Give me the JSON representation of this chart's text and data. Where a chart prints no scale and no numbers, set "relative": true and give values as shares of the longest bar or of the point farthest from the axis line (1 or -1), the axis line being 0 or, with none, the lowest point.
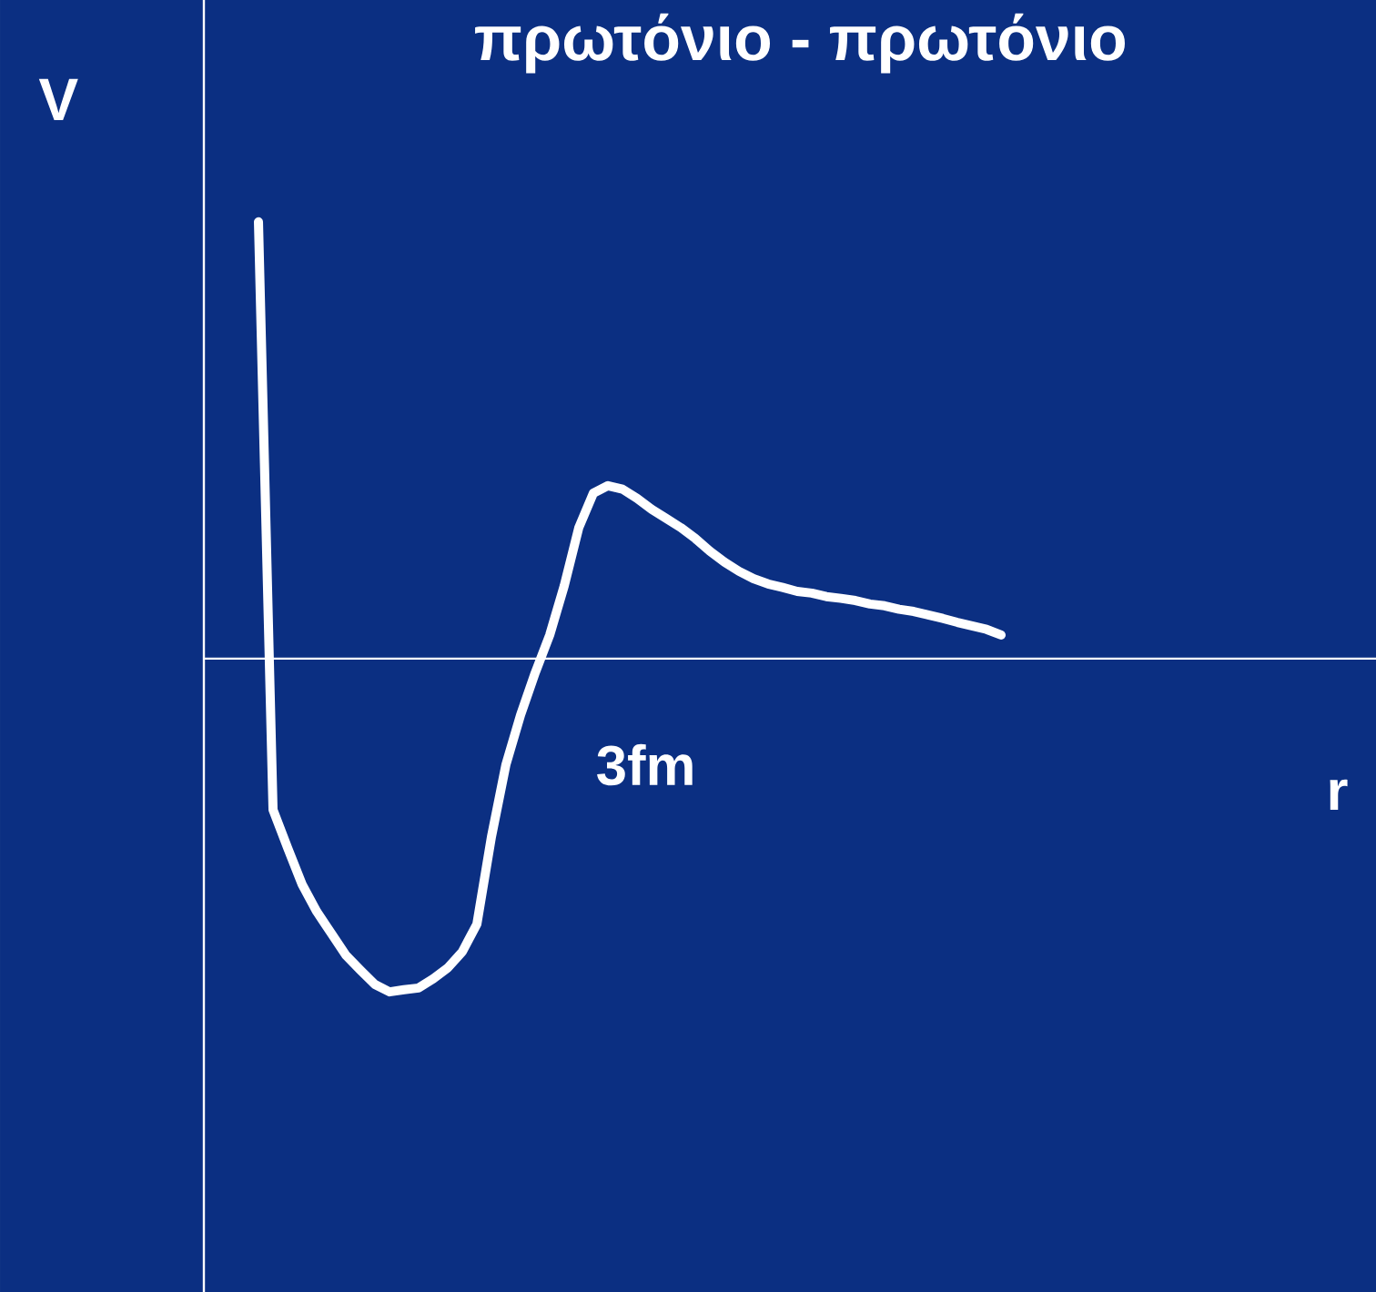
{
  "chart_data": {
    "type": "line",
    "title": "πρωτόνιο - πρωτόνιο",
    "ylabel": "V",
    "relative": true,
    "annotations": [
      "3fm",
      "r"
    ],
    "categories": [
      null,
      null,
      null,
      null,
      null,
      null,
      null,
      null,
      null,
      null,
      null,
      null,
      null,
      null,
      null,
      null,
      null,
      null,
      null,
      null,
      null,
      null,
      null,
      null,
      null,
      null,
      null,
      null,
      null,
      null,
      null,
      null,
      null,
      null,
      null,
      null,
      null,
      null,
      null,
      null,
      null,
      null,
      null,
      null,
      null,
      null,
      null,
      null,
      null,
      null,
      null,
      null
    ],
    "series": [
      {
        "color": "#ffffff",
        "values": [
          1.0,
          -0.346,
          -0.433,
          -0.517,
          -0.579,
          -0.629,
          -0.679,
          -0.713,
          -0.746,
          -0.763,
          -0.758,
          -0.754,
          -0.733,
          -0.708,
          -0.671,
          -0.608,
          -0.408,
          -0.242,
          -0.129,
          -0.033,
          0.054,
          0.167,
          0.3,
          0.379,
          0.396,
          0.388,
          0.367,
          0.342,
          0.321,
          0.3,
          0.275,
          0.246,
          0.221,
          0.2,
          0.183,
          0.171,
          0.163,
          0.154,
          0.15,
          0.142,
          0.138,
          0.133,
          0.125,
          0.121,
          0.113,
          0.108,
          0.1,
          0.092,
          0.083,
          0.075,
          0.067,
          0.054
        ]
      }
    ],
    "grid": false,
    "marker": "none",
    "line_style": "solid"
  }
}
